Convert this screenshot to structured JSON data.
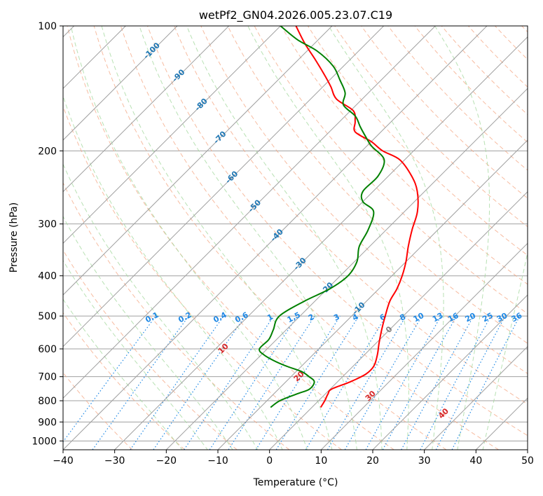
{
  "chart_data": {
    "type": "line",
    "chart_kind": "skew-t log-p diagram",
    "title": "wetPf2_GN04.2026.005.23.07.C19",
    "xlabel": "Temperature (°C)",
    "ylabel": "Pressure (hPa)",
    "xlim": [
      -40,
      50
    ],
    "ylim": [
      1050,
      100
    ],
    "x_ticks": [
      -40,
      -30,
      -20,
      -10,
      0,
      10,
      20,
      30,
      40,
      50
    ],
    "y_ticks": [
      100,
      200,
      300,
      400,
      500,
      600,
      700,
      800,
      900,
      1000
    ],
    "grid": true,
    "colors": {
      "temperature": "#ff0000",
      "dewpoint": "#008000",
      "isotherm": "#a0a0a0",
      "dry_adiabat": "#f4a582",
      "moist_adiabat": "#a6d9a0",
      "mixing_ratio": "#1e88e5",
      "isotherm_label": "#1f77b4",
      "dry_adiabat_label": "#d62728"
    },
    "series": [
      {
        "name": "Temperature",
        "color": "#ff0000",
        "points": [
          {
            "p": 830,
            "t": 1.7
          },
          {
            "p": 800,
            "t": 1.2
          },
          {
            "p": 770,
            "t": 0.5
          },
          {
            "p": 750,
            "t": 0.3
          },
          {
            "p": 720,
            "t": 2.5
          },
          {
            "p": 690,
            "t": 4.0
          },
          {
            "p": 660,
            "t": 4.0
          },
          {
            "p": 620,
            "t": 2.5
          },
          {
            "p": 580,
            "t": 0.5
          },
          {
            "p": 540,
            "t": -1.5
          },
          {
            "p": 500,
            "t": -3.5
          },
          {
            "p": 460,
            "t": -5.5
          },
          {
            "p": 430,
            "t": -6.5
          },
          {
            "p": 400,
            "t": -8.0
          },
          {
            "p": 370,
            "t": -10.0
          },
          {
            "p": 340,
            "t": -12.5
          },
          {
            "p": 310,
            "t": -15.0
          },
          {
            "p": 280,
            "t": -17.5
          },
          {
            "p": 250,
            "t": -21.5
          },
          {
            "p": 230,
            "t": -25.5
          },
          {
            "p": 210,
            "t": -31.0
          },
          {
            "p": 200,
            "t": -36.0
          },
          {
            "p": 190,
            "t": -40.0
          },
          {
            "p": 180,
            "t": -45.0
          },
          {
            "p": 170,
            "t": -47.0
          },
          {
            "p": 160,
            "t": -49.5
          },
          {
            "p": 150,
            "t": -55.0
          },
          {
            "p": 140,
            "t": -58.5
          },
          {
            "p": 130,
            "t": -62.5
          },
          {
            "p": 120,
            "t": -67.0
          },
          {
            "p": 110,
            "t": -72.0
          },
          {
            "p": 100,
            "t": -77.0
          }
        ]
      },
      {
        "name": "Dewpoint",
        "color": "#008000",
        "points": [
          {
            "p": 830,
            "t": -8.0
          },
          {
            "p": 800,
            "t": -7.5
          },
          {
            "p": 770,
            "t": -5.5
          },
          {
            "p": 750,
            "t": -4.0
          },
          {
            "p": 720,
            "t": -4.5
          },
          {
            "p": 700,
            "t": -6.5
          },
          {
            "p": 680,
            "t": -9.0
          },
          {
            "p": 660,
            "t": -13.0
          },
          {
            "p": 640,
            "t": -16.5
          },
          {
            "p": 620,
            "t": -19.5
          },
          {
            "p": 600,
            "t": -21.5
          },
          {
            "p": 570,
            "t": -21.5
          },
          {
            "p": 540,
            "t": -22.5
          },
          {
            "p": 500,
            "t": -24.0
          },
          {
            "p": 460,
            "t": -22.0
          },
          {
            "p": 430,
            "t": -19.5
          },
          {
            "p": 400,
            "t": -18.5
          },
          {
            "p": 370,
            "t": -19.5
          },
          {
            "p": 340,
            "t": -22.0
          },
          {
            "p": 310,
            "t": -23.5
          },
          {
            "p": 280,
            "t": -26.0
          },
          {
            "p": 265,
            "t": -30.0
          },
          {
            "p": 250,
            "t": -32.0
          },
          {
            "p": 230,
            "t": -32.0
          },
          {
            "p": 210,
            "t": -34.0
          },
          {
            "p": 195,
            "t": -39.0
          },
          {
            "p": 185,
            "t": -42.0
          },
          {
            "p": 175,
            "t": -45.0
          },
          {
            "p": 165,
            "t": -48.0
          },
          {
            "p": 155,
            "t": -52.5
          },
          {
            "p": 145,
            "t": -54.5
          },
          {
            "p": 135,
            "t": -58.0
          },
          {
            "p": 125,
            "t": -62.0
          },
          {
            "p": 115,
            "t": -68.0
          },
          {
            "p": 108,
            "t": -74.0
          },
          {
            "p": 100,
            "t": -80.0
          }
        ]
      }
    ],
    "isotherm_labels": [
      "-100",
      "-90",
      "-80",
      "-70",
      "-60",
      "-50",
      "-40",
      "-30",
      "-20",
      "-10"
    ],
    "isotherm_label_values": [
      -100,
      -90,
      -80,
      -70,
      -60,
      -50,
      -40,
      -30,
      -20,
      -10
    ],
    "freezing_label": "0",
    "dry_adiabat_labels": [
      "10",
      "20",
      "30",
      "40"
    ],
    "dry_adiabat_label_values": [
      10,
      20,
      30,
      40
    ],
    "mixing_ratio_labels": [
      "0.1",
      "0.2",
      "0.4",
      "0.6",
      "1",
      "1.5",
      "2",
      "3",
      "4",
      "6",
      "8",
      "10",
      "13",
      "16",
      "20",
      "25",
      "30",
      "36"
    ],
    "mixing_ratio_values": [
      0.1,
      0.2,
      0.4,
      0.6,
      1,
      1.5,
      2,
      3,
      4,
      6,
      8,
      10,
      13,
      16,
      20,
      25,
      30,
      36
    ]
  }
}
